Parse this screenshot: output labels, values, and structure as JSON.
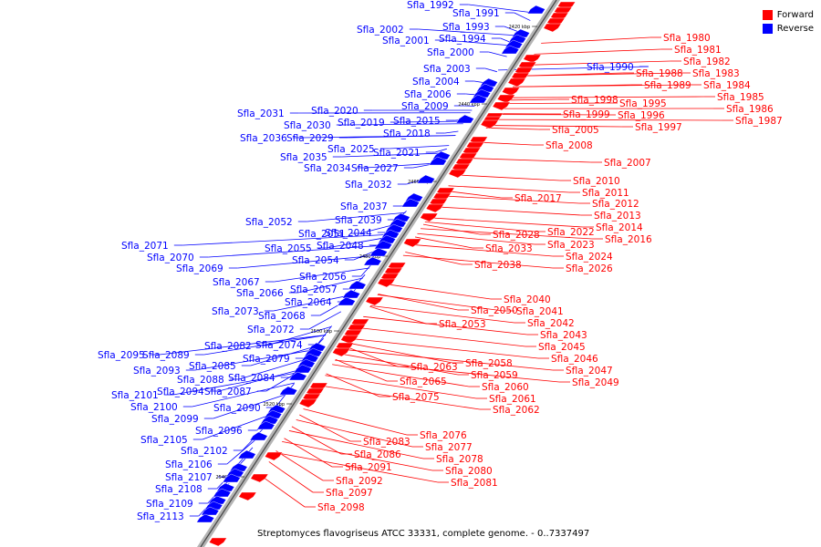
{
  "legend": {
    "forward_label": "Forward",
    "reverse_label": "Reverse",
    "forward_color": "#ff0000",
    "reverse_color": "#0000ff"
  },
  "caption": "Streptomyces flavogriseus ATCC 33331, complete genome. - 0..7337497",
  "ticks": [
    "2420 kbp",
    "2440 kbp",
    "2460 kbp",
    "2480 kbp",
    "2500 kbp",
    "2520 kbp",
    "2540 kbp"
  ],
  "forward_genes": [
    "Sfla_1980",
    "Sfla_1981",
    "Sfla_1982",
    "Sfla_1983",
    "Sfla_1984",
    "Sfla_1985",
    "Sfla_1986",
    "Sfla_1987",
    "Sfla_1988",
    "Sfla_1989",
    "Sfla_1995",
    "Sfla_1996",
    "Sfla_1997",
    "Sfla_1998",
    "Sfla_1999",
    "Sfla_2005",
    "Sfla_2007",
    "Sfla_2008",
    "Sfla_2010",
    "Sfla_2011",
    "Sfla_2012",
    "Sfla_2013",
    "Sfla_2014",
    "Sfla_2016",
    "Sfla_2017",
    "Sfla_2022",
    "Sfla_2023",
    "Sfla_2024",
    "Sfla_2026",
    "Sfla_2028",
    "Sfla_2033",
    "Sfla_2038",
    "Sfla_2040",
    "Sfla_2041",
    "Sfla_2042",
    "Sfla_2043",
    "Sfla_2045",
    "Sfla_2046",
    "Sfla_2047",
    "Sfla_2049",
    "Sfla_2050",
    "Sfla_2053",
    "Sfla_2058",
    "Sfla_2059",
    "Sfla_2060",
    "Sfla_2061",
    "Sfla_2062",
    "Sfla_2063",
    "Sfla_2065",
    "Sfla_2075",
    "Sfla_2076",
    "Sfla_2077",
    "Sfla_2078",
    "Sfla_2080",
    "Sfla_2081",
    "Sfla_2083",
    "Sfla_2086",
    "Sfla_2091",
    "Sfla_2092",
    "Sfla_2097",
    "Sfla_2098"
  ],
  "reverse_genes": [
    "Sfla_1990",
    "Sfla_1991",
    "Sfla_1992",
    "Sfla_1993",
    "Sfla_1994",
    "Sfla_2000",
    "Sfla_2001",
    "Sfla_2002",
    "Sfla_2003",
    "Sfla_2004",
    "Sfla_2006",
    "Sfla_2009",
    "Sfla_2015",
    "Sfla_2018",
    "Sfla_2019",
    "Sfla_2020",
    "Sfla_2021",
    "Sfla_2025",
    "Sfla_2027",
    "Sfla_2029",
    "Sfla_2030",
    "Sfla_2031",
    "Sfla_2032",
    "Sfla_2034",
    "Sfla_2035",
    "Sfla_2036",
    "Sfla_2037",
    "Sfla_2039",
    "Sfla_2044",
    "Sfla_2048",
    "Sfla_2051",
    "Sfla_2052",
    "Sfla_2054",
    "Sfla_2055",
    "Sfla_2056",
    "Sfla_2057",
    "Sfla_2064",
    "Sfla_2066",
    "Sfla_2067",
    "Sfla_2068",
    "Sfla_2069",
    "Sfla_2070",
    "Sfla_2071",
    "Sfla_2072",
    "Sfla_2073",
    "Sfla_2074",
    "Sfla_2079",
    "Sfla_2082",
    "Sfla_2084",
    "Sfla_2085",
    "Sfla_2087",
    "Sfla_2088",
    "Sfla_2089",
    "Sfla_2090",
    "Sfla_2093",
    "Sfla_2094",
    "Sfla_2095",
    "Sfla_2096",
    "Sfla_2099",
    "Sfla_2100",
    "Sfla_2101",
    "Sfla_2102",
    "Sfla_2105",
    "Sfla_2106",
    "Sfla_2107",
    "Sfla_2108",
    "Sfla_2109",
    "Sfla_2113"
  ]
}
